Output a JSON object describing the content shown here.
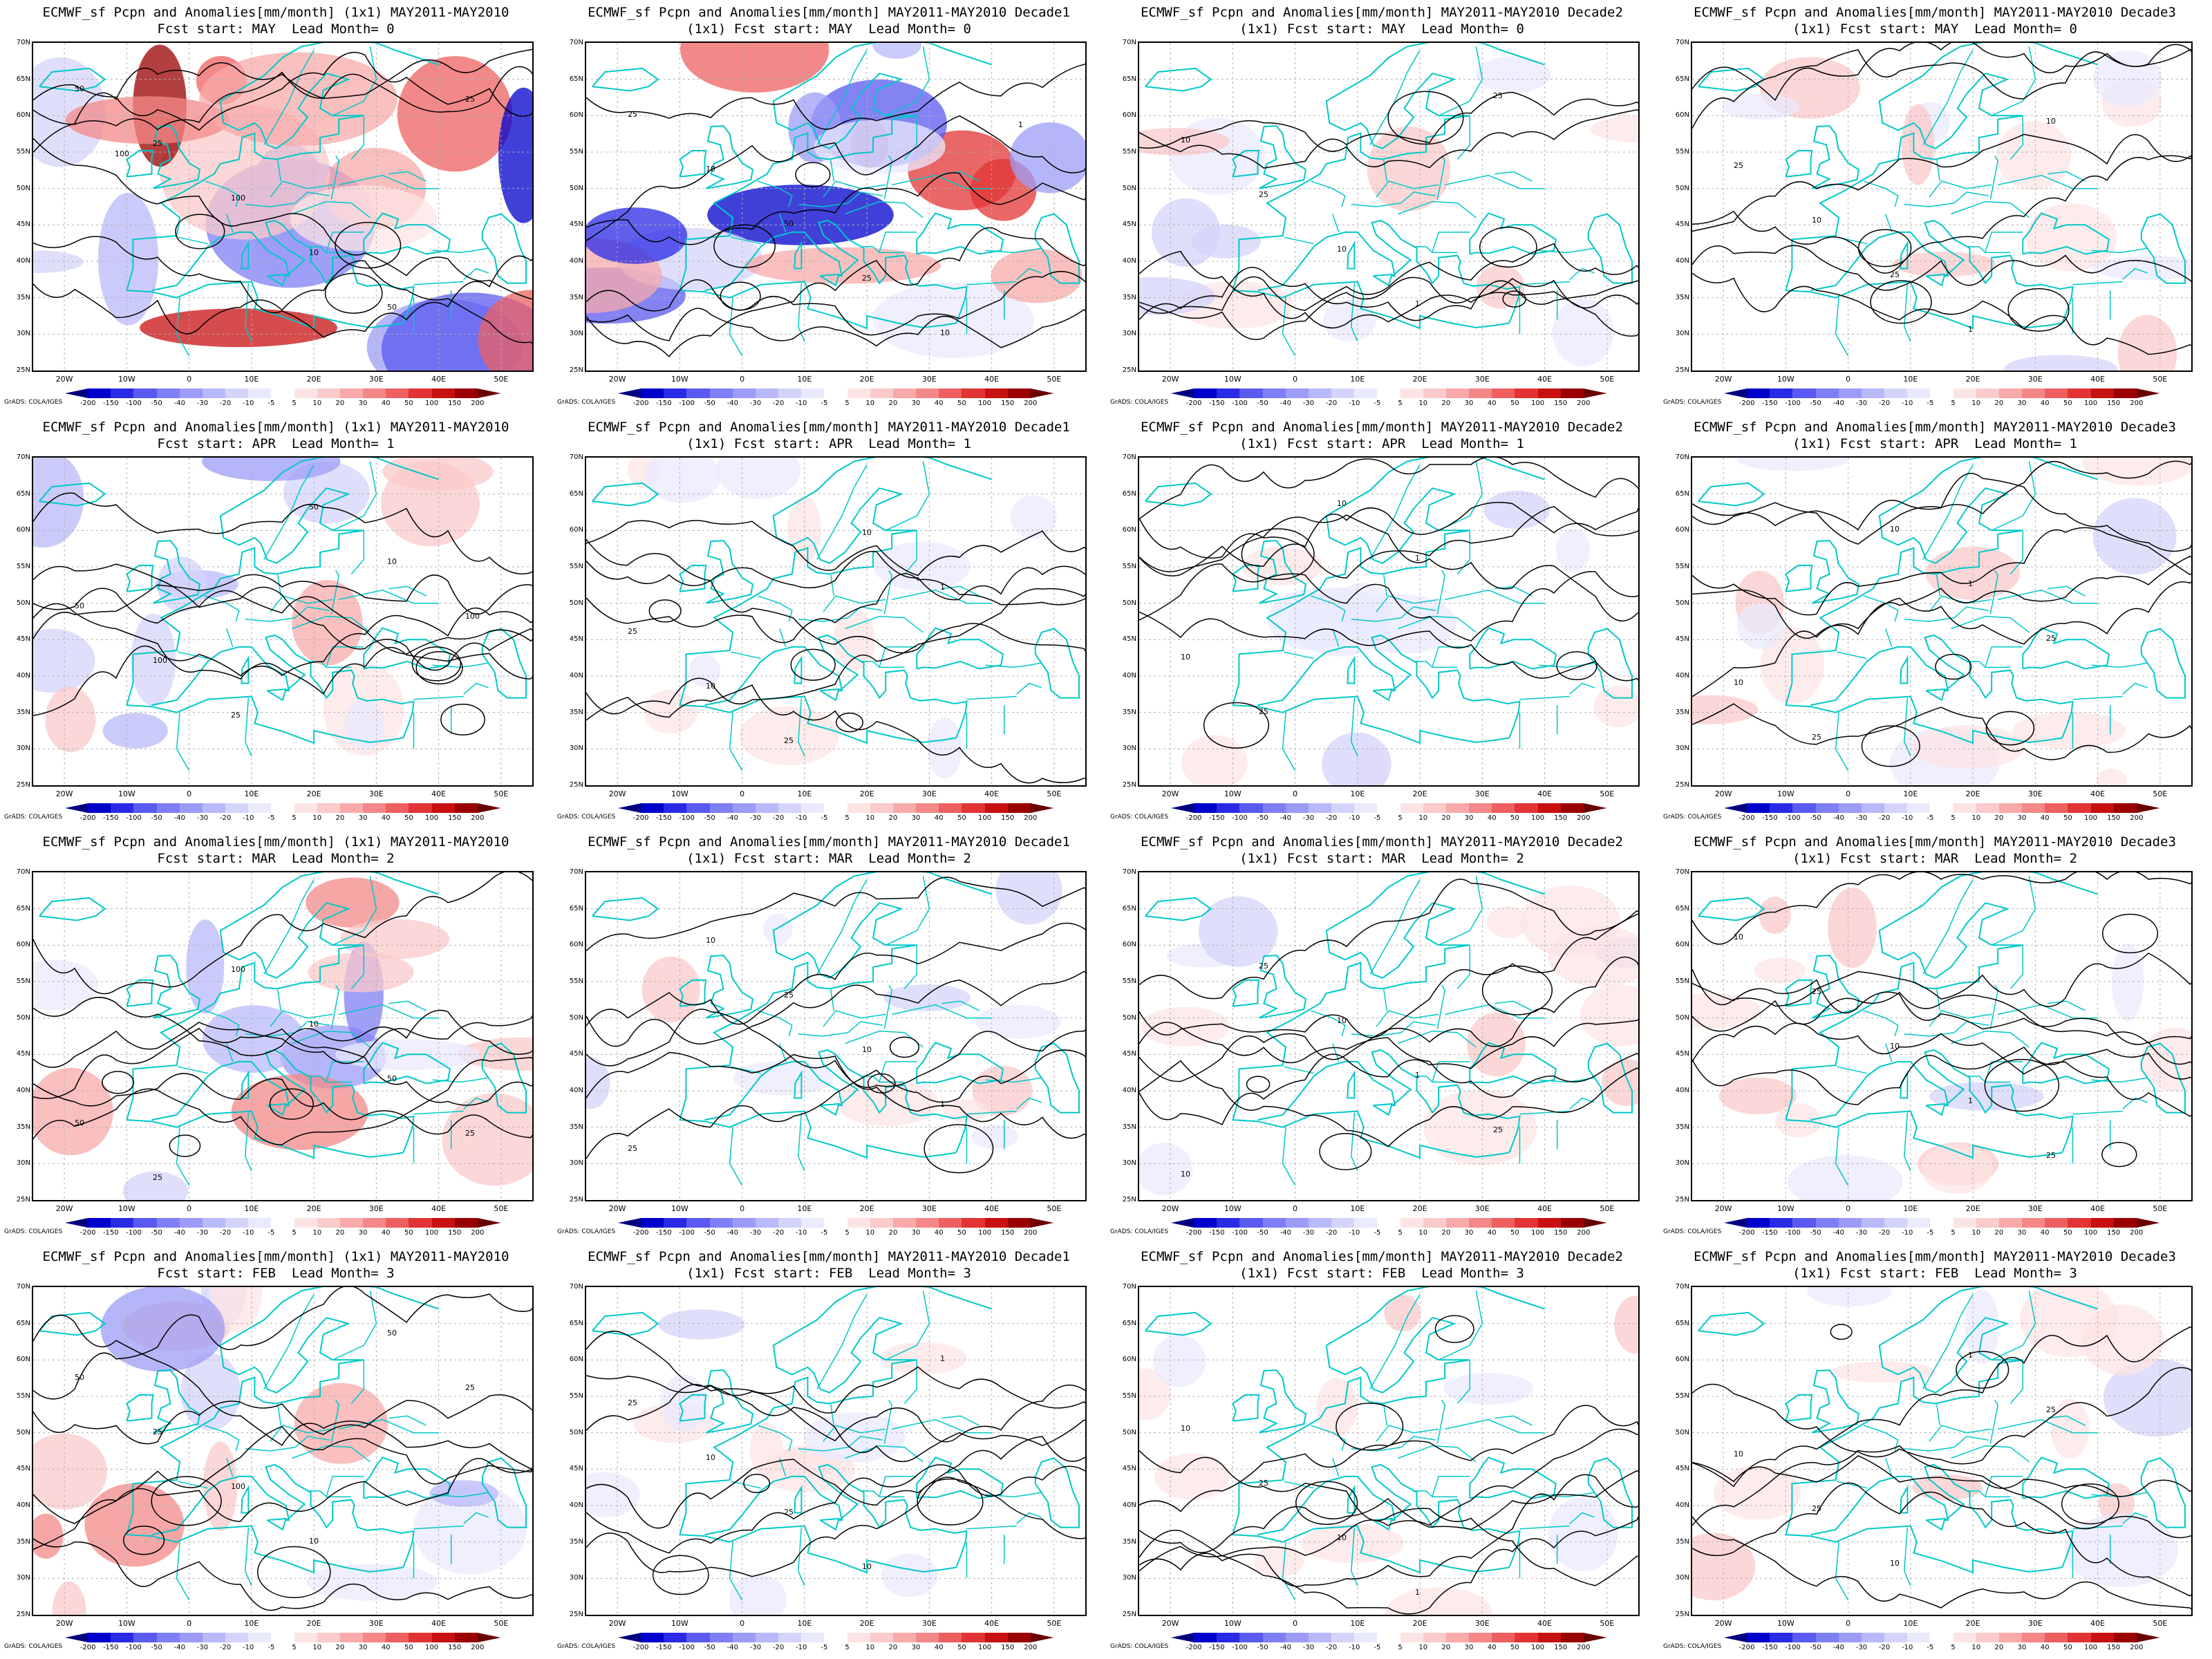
{
  "credit_text": "GrADS: COLA/IGES",
  "lat_ticks": [
    "70N",
    "65N",
    "60N",
    "55N",
    "50N",
    "45N",
    "40N",
    "35N",
    "30N",
    "25N"
  ],
  "lon_ticks": [
    "20W",
    "10W",
    "0",
    "10E",
    "20E",
    "30E",
    "40E",
    "50E"
  ],
  "colorbar": {
    "labels": [
      "-200",
      "-150",
      "-100",
      "-50",
      "-40",
      "-30",
      "-20",
      "-10",
      "-5",
      "5",
      "10",
      "20",
      "30",
      "40",
      "50",
      "100",
      "150",
      "200"
    ],
    "colors": [
      "#00007f",
      "#0000cc",
      "#2a2ae6",
      "#5a5af0",
      "#7f7ff5",
      "#9c9cf7",
      "#b9b9fa",
      "#d4d4fb",
      "#eaeafd",
      "#ffffff",
      "#fde4e4",
      "#fbcaca",
      "#f8aaaa",
      "#f48888",
      "#ee6060",
      "#e23434",
      "#c81010",
      "#9a0000",
      "#6a0000"
    ]
  },
  "contour_color": "#000000",
  "coast_color": "#00c8c8",
  "panels": [
    {
      "title1": "ECMWF_sf Pcpn and Anomalies[mm/month] (1x1) MAY2011-MAY2010",
      "title2": "Fcst start: MAY  Lead Month= 0",
      "intensity": 1.0,
      "contour_labels": [
        "50",
        "25",
        "100",
        "10",
        "50",
        "25",
        "100"
      ]
    },
    {
      "title1": "ECMWF_sf Pcpn and Anomalies[mm/month] MAY2011-MAY2010 Decade1",
      "title2": "(1x1) Fcst start: MAY  Lead Month= 0",
      "intensity": 0.9,
      "contour_labels": [
        "25",
        "10",
        "50",
        "25",
        "10",
        "1"
      ]
    },
    {
      "title1": "ECMWF_sf Pcpn and Anomalies[mm/month] MAY2011-MAY2010 Decade2",
      "title2": "(1x1) Fcst start: MAY  Lead Month= 0",
      "intensity": 0.3,
      "contour_labels": [
        "10",
        "25",
        "10",
        "1",
        "25"
      ]
    },
    {
      "title1": "ECMWF_sf Pcpn and Anomalies[mm/month] MAY2011-MAY2010 Decade3",
      "title2": "(1x1) Fcst start: MAY  Lead Month= 0",
      "intensity": 0.25,
      "contour_labels": [
        "25",
        "10",
        "25",
        "1",
        "10"
      ]
    },
    {
      "title1": "ECMWF_sf Pcpn and Anomalies[mm/month] (1x1) MAY2011-MAY2010",
      "title2": "Fcst start: APR  Lead Month= 1",
      "intensity": 0.45,
      "contour_labels": [
        "50",
        "100",
        "25",
        "50",
        "10",
        "100"
      ]
    },
    {
      "title1": "ECMWF_sf Pcpn and Anomalies[mm/month] MAY2011-MAY2010 Decade1",
      "title2": "(1x1) Fcst start: APR  Lead Month= 1",
      "intensity": 0.1,
      "contour_labels": [
        "25",
        "10",
        "25",
        "10",
        "1"
      ]
    },
    {
      "title1": "ECMWF_sf Pcpn and Anomalies[mm/month] MAY2011-MAY2010 Decade2",
      "title2": "(1x1) Fcst start: APR  Lead Month= 1",
      "intensity": 0.15,
      "contour_labels": [
        "10",
        "25",
        "10",
        "1"
      ]
    },
    {
      "title1": "ECMWF_sf Pcpn and Anomalies[mm/month] MAY2011-MAY2010 Decade3",
      "title2": "(1x1) Fcst start: APR  Lead Month= 1",
      "intensity": 0.2,
      "contour_labels": [
        "10",
        "25",
        "10",
        "1",
        "25"
      ]
    },
    {
      "title1": "ECMWF_sf Pcpn and Anomalies[mm/month] (1x1) MAY2011-MAY2010",
      "title2": "Fcst start: MAR  Lead Month= 2",
      "intensity": 0.55,
      "contour_labels": [
        "50",
        "25",
        "100",
        "10",
        "50",
        "25"
      ]
    },
    {
      "title1": "ECMWF_sf Pcpn and Anomalies[mm/month] MAY2011-MAY2010 Decade1",
      "title2": "(1x1) Fcst start: MAR  Lead Month= 2",
      "intensity": 0.15,
      "contour_labels": [
        "25",
        "10",
        "25",
        "10",
        "1"
      ]
    },
    {
      "title1": "ECMWF_sf Pcpn and Anomalies[mm/month] MAY2011-MAY2010 Decade2",
      "title2": "(1x1) Fcst start: MAR  Lead Month= 2",
      "intensity": 0.2,
      "contour_labels": [
        "10",
        "25",
        "10",
        "1",
        "25"
      ]
    },
    {
      "title1": "ECMWF_sf Pcpn and Anomalies[mm/month] MAY2011-MAY2010 Decade3",
      "title2": "(1x1) Fcst start: MAR  Lead Month= 2",
      "intensity": 0.25,
      "contour_labels": [
        "10",
        "25",
        "10",
        "1",
        "25"
      ]
    },
    {
      "title1": "ECMWF_sf Pcpn and Anomalies[mm/month] (1x1) MAY2011-MAY2010",
      "title2": "Fcst start: FEB  Lead Month= 3",
      "intensity": 0.45,
      "contour_labels": [
        "50",
        "25",
        "100",
        "10",
        "50",
        "25"
      ]
    },
    {
      "title1": "ECMWF_sf Pcpn and Anomalies[mm/month] MAY2011-MAY2010 Decade1",
      "title2": "(1x1) Fcst start: FEB  Lead Month= 3",
      "intensity": 0.15,
      "contour_labels": [
        "25",
        "10",
        "25",
        "10",
        "1"
      ]
    },
    {
      "title1": "ECMWF_sf Pcpn and Anomalies[mm/month] MAY2011-MAY2010 Decade2",
      "title2": "(1x1) Fcst start: FEB  Lead Month= 3",
      "intensity": 0.15,
      "contour_labels": [
        "10",
        "25",
        "10",
        "1"
      ]
    },
    {
      "title1": "ECMWF_sf Pcpn and Anomalies[mm/month] MAY2011-MAY2010 Decade3",
      "title2": "(1x1) Fcst start: FEB  Lead Month= 3",
      "intensity": 0.2,
      "contour_labels": [
        "10",
        "25",
        "10",
        "1",
        "25"
      ]
    }
  ]
}
